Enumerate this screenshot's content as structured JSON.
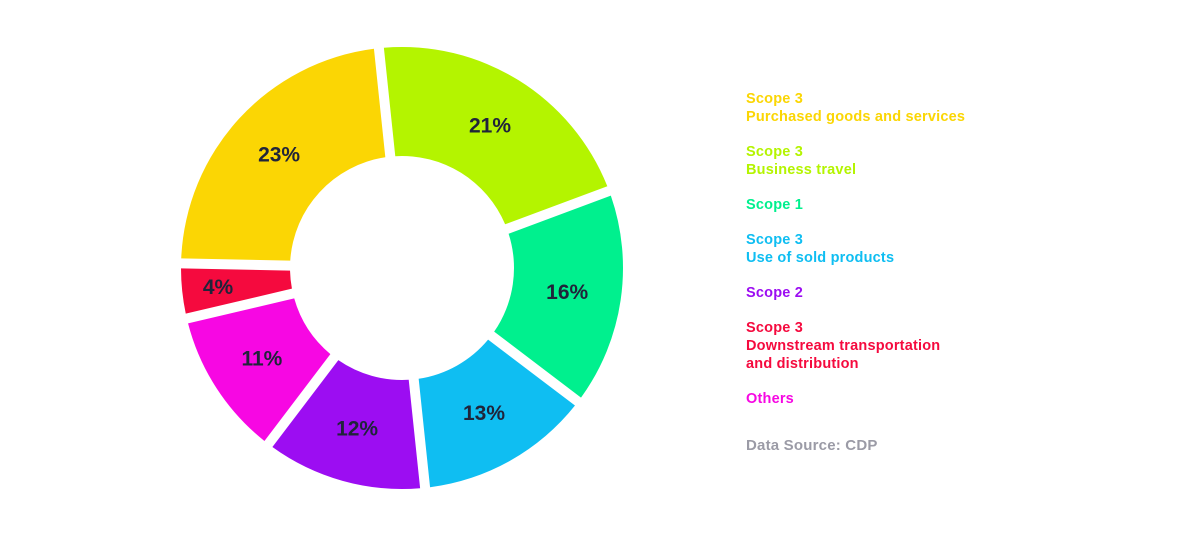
{
  "chart_data": {
    "type": "pie",
    "subtype": "donut",
    "title": "",
    "unit": "%",
    "legend_position": "right",
    "grid": false,
    "label_color": "#20243A",
    "background_color": "#FFFFFF",
    "slices": [
      {
        "name": "Scope 3 Business travel",
        "value": 21,
        "label": "21%",
        "color": "#B4F400"
      },
      {
        "name": "Scope 1",
        "value": 16,
        "label": "16%",
        "color": "#00F08E"
      },
      {
        "name": "Scope 3 Use of sold products",
        "value": 13,
        "label": "13%",
        "color": "#0FBEF2"
      },
      {
        "name": "Scope 2",
        "value": 12,
        "label": "12%",
        "color": "#9C0DF2"
      },
      {
        "name": "Others",
        "value": 11,
        "label": "11%",
        "color": "#F707E3"
      },
      {
        "name": "Scope 3 Downstream transportation and distribution",
        "value": 4,
        "label": "4%",
        "color": "#F50A3E"
      },
      {
        "name": "Scope 3 Purchased goods and services",
        "value": 23,
        "label": "23%",
        "color": "#FBD604"
      }
    ]
  },
  "legend": {
    "items": [
      {
        "lines": [
          "Scope 3",
          "Purchased goods and services"
        ],
        "color": "#FBD604"
      },
      {
        "lines": [
          "Scope 3",
          "Business travel"
        ],
        "color": "#B4F400"
      },
      {
        "lines": [
          "Scope 1"
        ],
        "color": "#00F08E"
      },
      {
        "lines": [
          "Scope 3",
          "Use of sold products"
        ],
        "color": "#0FBEF2"
      },
      {
        "lines": [
          "Scope 2"
        ],
        "color": "#9C0DF2"
      },
      {
        "lines": [
          "Scope 3",
          "Downstream transportation",
          "and distribution"
        ],
        "color": "#F50A3E"
      },
      {
        "lines": [
          "Others"
        ],
        "color": "#F707E3"
      }
    ],
    "source": {
      "text": "Data Source: CDP",
      "color": "#9B9BA6"
    }
  }
}
